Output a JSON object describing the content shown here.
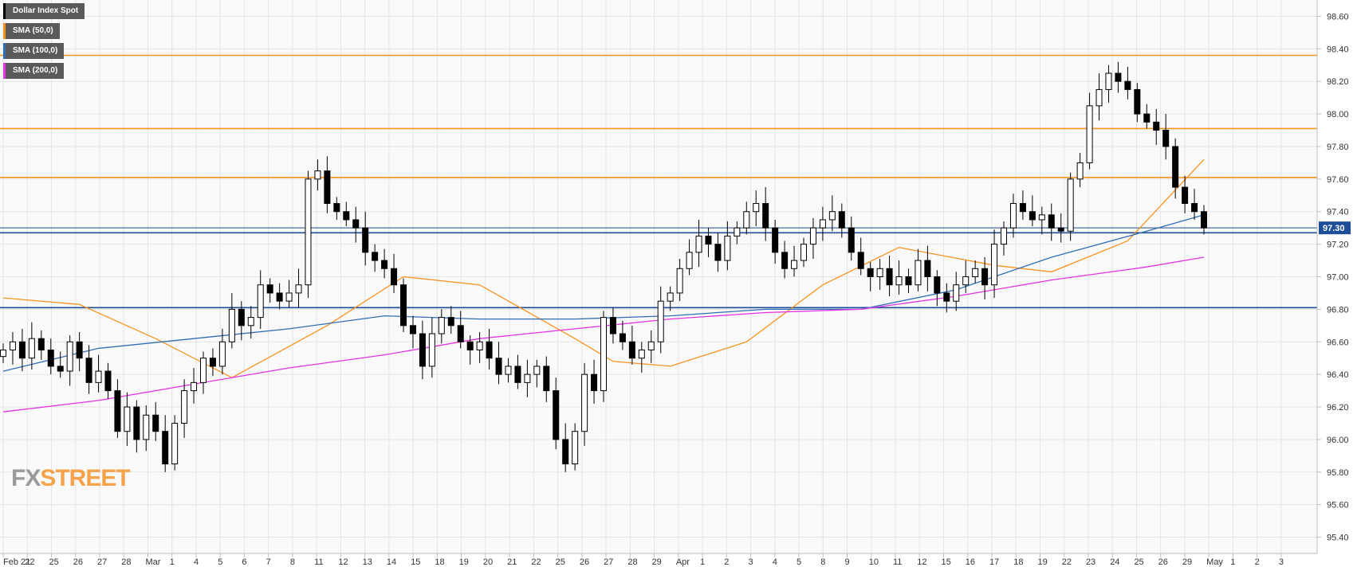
{
  "legend": {
    "items": [
      {
        "label": "Dollar Index Spot",
        "color": "#000000"
      },
      {
        "label": "SMA (50,0)",
        "color": "#f7931e"
      },
      {
        "label": "SMA (100,0)",
        "color": "#2f6db5"
      },
      {
        "label": "SMA (200,0)",
        "color": "#e433e4"
      }
    ]
  },
  "watermark": {
    "fx": "FX",
    "street": "STREET"
  },
  "colors": {
    "resistance": "#f7931e",
    "support": "#1f4e99",
    "sma50": "#f7931e",
    "sma100": "#2f6db5",
    "sma200": "#e433e4",
    "price_label_bg": "#1f4e99",
    "grid": "#e4e4e4",
    "plot_bg": "#f9f9f9"
  },
  "chart_data": {
    "type": "candlestick",
    "title": "",
    "ylim": [
      95.3,
      98.7
    ],
    "y_ticks": [
      "95.40",
      "95.60",
      "95.80",
      "96.00",
      "96.20",
      "96.40",
      "96.60",
      "96.80",
      "97.00",
      "97.20",
      "97.40",
      "97.60",
      "97.80",
      "98.00",
      "98.20",
      "98.40",
      "98.60"
    ],
    "x_ticks": [
      "Feb 21",
      "22",
      "25",
      "26",
      "27",
      "28",
      "Mar",
      "1",
      "4",
      "5",
      "6",
      "7",
      "8",
      "11",
      "12",
      "13",
      "14",
      "15",
      "18",
      "19",
      "20",
      "21",
      "22",
      "25",
      "26",
      "27",
      "28",
      "29",
      "Apr",
      "1",
      "2",
      "3",
      "4",
      "5",
      "8",
      "9",
      "10",
      "11",
      "12",
      "15",
      "16",
      "17",
      "18",
      "19",
      "22",
      "23",
      "24",
      "25",
      "26",
      "29",
      "May",
      "1",
      "2",
      "3"
    ],
    "current_price": 97.3,
    "current_price_label": "97.30",
    "resistance_levels": [
      98.36,
      97.91,
      97.61
    ],
    "support_levels": [
      97.27,
      96.81
    ],
    "grid": true,
    "series": [
      {
        "name": "Dollar Index Spot",
        "kind": "candles",
        "closes": [
          96.55,
          96.6,
          96.5,
          96.62,
          96.55,
          96.45,
          96.42,
          96.6,
          96.5,
          96.35,
          96.42,
          96.3,
          96.05,
          96.2,
          96.0,
          96.15,
          96.05,
          95.85,
          96.1,
          96.3,
          96.35,
          96.5,
          96.45,
          96.6,
          96.8,
          96.7,
          96.75,
          96.95,
          96.9,
          96.85,
          96.9,
          96.95,
          97.6,
          97.65,
          97.45,
          97.4,
          97.35,
          97.3,
          97.15,
          97.1,
          97.05,
          96.95,
          96.7,
          96.65,
          96.45,
          96.65,
          96.75,
          96.7,
          96.6,
          96.55,
          96.6,
          96.5,
          96.4,
          96.45,
          96.35,
          96.4,
          96.45,
          96.3,
          96.0,
          95.85,
          96.05,
          96.4,
          96.3,
          96.75,
          96.65,
          96.6,
          96.5,
          96.55,
          96.6,
          96.85,
          96.9,
          97.05,
          97.15,
          97.25,
          97.2,
          97.1,
          97.25,
          97.3,
          97.4,
          97.45,
          97.3,
          97.15,
          97.05,
          97.1,
          97.2,
          97.3,
          97.35,
          97.4,
          97.3,
          97.15,
          97.05,
          97.0,
          97.05,
          96.95,
          97.0,
          96.95,
          97.1,
          97.0,
          96.9,
          96.85,
          96.95,
          97.0,
          97.05,
          96.95,
          97.2,
          97.3,
          97.45,
          97.4,
          97.35,
          97.38,
          97.3,
          97.28,
          97.6,
          97.7,
          98.05,
          98.15,
          98.25,
          98.2,
          98.15,
          98.0,
          97.95,
          97.9,
          97.8,
          97.55,
          97.45,
          97.4,
          97.3
        ]
      },
      {
        "name": "SMA (50,0)",
        "kind": "line",
        "x_index": [
          0,
          8,
          16,
          24,
          34,
          42,
          50,
          60,
          64,
          70,
          78,
          86,
          94,
          104,
          110,
          118,
          126
        ],
        "values": [
          96.87,
          96.83,
          96.62,
          96.38,
          96.7,
          97.0,
          96.95,
          96.62,
          96.48,
          96.45,
          96.6,
          96.95,
          97.18,
          97.07,
          97.03,
          97.22,
          97.72
        ]
      },
      {
        "name": "SMA (100,0)",
        "kind": "line",
        "x_index": [
          0,
          10,
          20,
          30,
          40,
          50,
          60,
          70,
          80,
          90,
          100,
          110,
          120,
          126
        ],
        "values": [
          96.42,
          96.56,
          96.62,
          96.68,
          96.76,
          96.74,
          96.74,
          96.76,
          96.8,
          96.8,
          96.92,
          97.12,
          97.28,
          97.38
        ]
      },
      {
        "name": "SMA (200,0)",
        "kind": "line",
        "x_index": [
          0,
          10,
          20,
          30,
          40,
          50,
          60,
          70,
          80,
          90,
          100,
          110,
          120,
          126
        ],
        "values": [
          96.17,
          96.24,
          96.34,
          96.44,
          96.52,
          96.62,
          96.68,
          96.74,
          96.78,
          96.8,
          96.88,
          96.98,
          97.06,
          97.12
        ]
      }
    ]
  }
}
